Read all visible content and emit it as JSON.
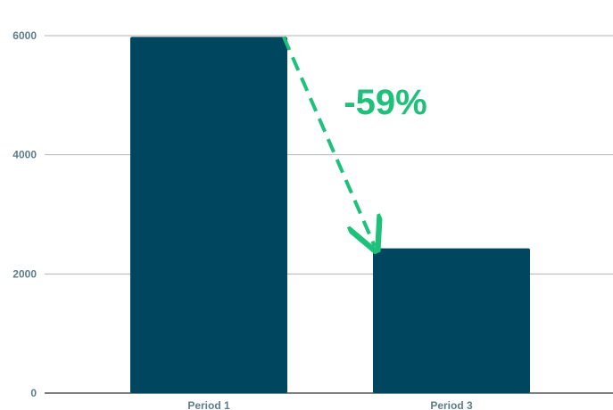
{
  "chart_data": {
    "type": "bar",
    "title": "",
    "xlabel": "",
    "ylabel": "",
    "categories": [
      "Period 1",
      "Period 3"
    ],
    "values": [
      5980,
      2430
    ],
    "ylim": [
      0,
      6000
    ],
    "y_ticks": [
      0,
      2000,
      4000,
      6000
    ],
    "y_tick_labels": [
      "0",
      "2000",
      "4000",
      "6000"
    ],
    "grid": true,
    "legend": "none",
    "annotation": {
      "text": "-59%",
      "type": "dashed-arrow",
      "from_category": "Period 1",
      "to_category": "Period 3"
    }
  },
  "colors": {
    "bar": "#00465f",
    "annotation": "#1ec17a",
    "gridline": "#b3b3b3",
    "axis_text": "#5e7c8a",
    "baseline": "#333333"
  }
}
